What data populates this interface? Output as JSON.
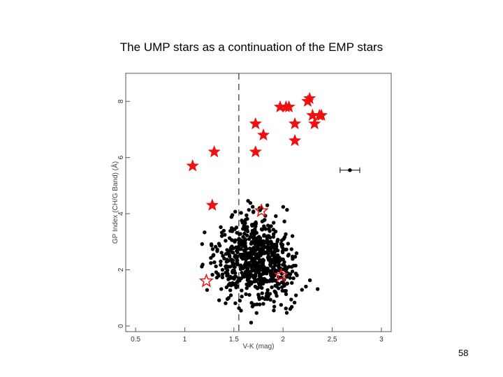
{
  "slide": {
    "title": "The UMP stars as a continuation of the EMP stars",
    "page_number": "58"
  },
  "chart_data": {
    "type": "scatter",
    "title": "",
    "xlabel": "V-K (mag)",
    "ylabel": "GP Index (CH/G Band) (Å)",
    "xlim": [
      0.4,
      3.1
    ],
    "ylim": [
      -0.2,
      9.0
    ],
    "xticks": [
      0.5,
      1,
      1.5,
      2,
      2.5,
      3
    ],
    "xtick_labels": [
      "0.5",
      "1",
      "1.5",
      "2",
      "2.5",
      "3"
    ],
    "yticks": [
      0,
      2,
      4,
      6,
      8
    ],
    "ytick_labels": [
      "0",
      "2",
      "4",
      "6",
      "8"
    ],
    "vline_x": 1.55,
    "grid": false,
    "colors": {
      "background_stars": "#000000",
      "ump_stars": "#ee1111",
      "axes": "#555555"
    },
    "series": [
      {
        "marker": "filled-star",
        "color": "#ee1111",
        "x": [
          1.08,
          1.28,
          1.3,
          1.72,
          1.72,
          1.8,
          1.97,
          2.03,
          2.06,
          2.12,
          2.12,
          2.25,
          2.27,
          2.3,
          2.32,
          2.37,
          2.39
        ],
        "y": [
          5.7,
          4.3,
          6.2,
          6.2,
          7.2,
          6.8,
          7.8,
          7.8,
          7.8,
          7.2,
          6.6,
          8.0,
          8.1,
          7.5,
          7.2,
          7.5,
          7.5
        ]
      },
      {
        "marker": "open-star",
        "color": "#ee1111",
        "x": [
          1.22,
          1.78,
          1.98
        ],
        "y": [
          1.6,
          4.1,
          1.8
        ]
      }
    ],
    "error_bar": {
      "x": 2.68,
      "y": 5.55,
      "x_err": 0.1
    }
  }
}
